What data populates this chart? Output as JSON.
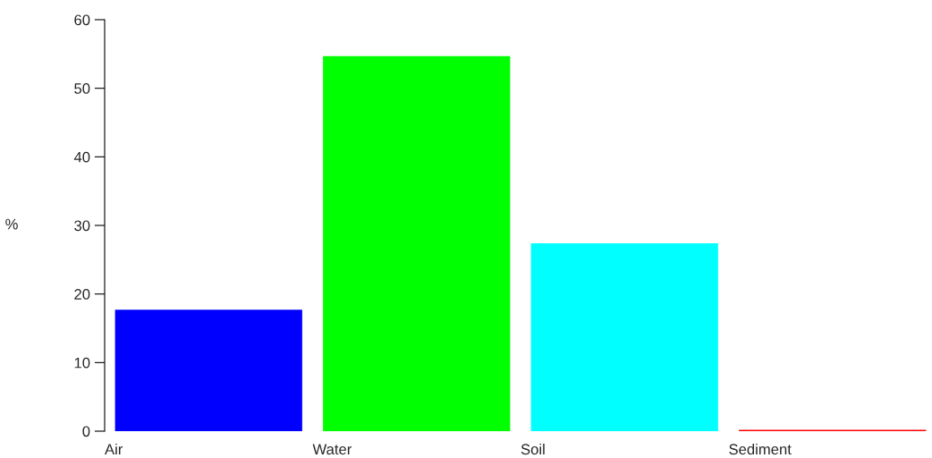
{
  "chart_data": {
    "type": "bar",
    "ylabel": "%",
    "categories": [
      "Air",
      "Water",
      "Soil",
      "Sediment"
    ],
    "values": [
      17.7,
      54.7,
      27.4,
      0.2
    ],
    "colors": [
      "#0000ff",
      "#00ff00",
      "#00ffff",
      "#ff0000"
    ],
    "ylim": [
      0,
      60
    ],
    "yticks": [
      0,
      10,
      20,
      30,
      40,
      50,
      60
    ],
    "grid": false
  }
}
